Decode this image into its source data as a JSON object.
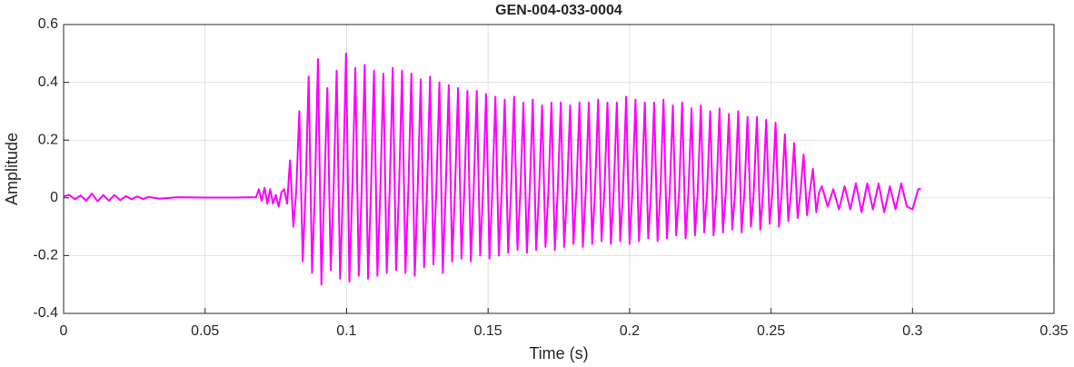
{
  "chart_data": {
    "type": "line",
    "title": "GEN-004-033-0004",
    "xlabel": "Time (s)",
    "ylabel": "Amplitude",
    "color": "#ff00ff",
    "grid": true,
    "xlim": [
      0,
      0.35
    ],
    "xticks": [
      0,
      0.05,
      0.1,
      0.15,
      0.2,
      0.25,
      0.3,
      0.35
    ],
    "ylim": [
      -0.4,
      0.6
    ],
    "yticks": [
      -0.4,
      -0.2,
      0,
      0.2,
      0.4,
      0.6
    ],
    "x": [
      0,
      0.002,
      0.004,
      0.006,
      0.008,
      0.01,
      0.012,
      0.014,
      0.016,
      0.018,
      0.02,
      0.022,
      0.024,
      0.026,
      0.028,
      0.03,
      0.034,
      0.04,
      0.05,
      0.06,
      0.068,
      0.069,
      0.07,
      0.071,
      0.072,
      0.073,
      0.074,
      0.075,
      0.076,
      0.077,
      0.078,
      0.079,
      0.08,
      0.0812,
      0.0822,
      0.0833,
      0.0845,
      0.0855,
      0.0866,
      0.0878,
      0.0888,
      0.0899,
      0.0911,
      0.0921,
      0.0932,
      0.0944,
      0.0954,
      0.0965,
      0.0977,
      0.0987,
      0.0998,
      0.101,
      0.102,
      0.1031,
      0.1043,
      0.1053,
      0.1064,
      0.1076,
      0.1086,
      0.1097,
      0.1109,
      0.1119,
      0.113,
      0.1142,
      0.1152,
      0.1163,
      0.1175,
      0.1185,
      0.1196,
      0.1208,
      0.1218,
      0.1229,
      0.1241,
      0.1251,
      0.1262,
      0.1274,
      0.1284,
      0.1295,
      0.1307,
      0.1317,
      0.1328,
      0.134,
      0.135,
      0.1361,
      0.1373,
      0.1383,
      0.1394,
      0.1406,
      0.1416,
      0.1427,
      0.1439,
      0.1449,
      0.146,
      0.1472,
      0.1482,
      0.1493,
      0.1505,
      0.1515,
      0.1526,
      0.1538,
      0.1548,
      0.1559,
      0.1571,
      0.1581,
      0.1592,
      0.1604,
      0.1614,
      0.1625,
      0.1637,
      0.1647,
      0.1658,
      0.167,
      0.168,
      0.1691,
      0.1703,
      0.1713,
      0.1724,
      0.1736,
      0.1746,
      0.1757,
      0.1769,
      0.1779,
      0.179,
      0.1802,
      0.1812,
      0.1823,
      0.1835,
      0.1845,
      0.1856,
      0.1868,
      0.1878,
      0.1889,
      0.1901,
      0.1911,
      0.1922,
      0.1934,
      0.1944,
      0.1955,
      0.1967,
      0.1977,
      0.1988,
      0.2,
      0.201,
      0.2021,
      0.2033,
      0.2043,
      0.2054,
      0.2066,
      0.2076,
      0.2087,
      0.2099,
      0.2109,
      0.212,
      0.2132,
      0.2142,
      0.2153,
      0.2165,
      0.2175,
      0.2186,
      0.2198,
      0.2208,
      0.2219,
      0.2231,
      0.2241,
      0.2252,
      0.2264,
      0.2274,
      0.2285,
      0.2297,
      0.2307,
      0.2318,
      0.233,
      0.234,
      0.2351,
      0.2363,
      0.2373,
      0.2384,
      0.2396,
      0.2406,
      0.2417,
      0.2429,
      0.2439,
      0.245,
      0.2462,
      0.2472,
      0.2483,
      0.2495,
      0.2505,
      0.2516,
      0.2528,
      0.2538,
      0.2549,
      0.2561,
      0.2571,
      0.2582,
      0.2594,
      0.2604,
      0.2615,
      0.2627,
      0.2637,
      0.2648,
      0.266,
      0.267,
      0.268,
      0.27,
      0.272,
      0.274,
      0.276,
      0.278,
      0.28,
      0.282,
      0.284,
      0.286,
      0.288,
      0.29,
      0.292,
      0.294,
      0.296,
      0.298,
      0.3,
      0.302,
      0.303
    ],
    "values": [
      0.005,
      0.01,
      -0.005,
      0.008,
      -0.01,
      0.015,
      -0.012,
      0.01,
      -0.01,
      0.01,
      -0.008,
      0.006,
      -0.005,
      0.005,
      -0.004,
      0.003,
      -0.003,
      0.002,
      0.001,
      0.001,
      0.002,
      0.03,
      -0.01,
      0.035,
      -0.02,
      0.03,
      -0.02,
      0.01,
      -0.03,
      0.02,
      0.03,
      -0.02,
      0.13,
      -0.1,
      0.02,
      0.3,
      -0.22,
      0.02,
      0.42,
      -0.26,
      0.02,
      0.48,
      -0.3,
      0.02,
      0.38,
      -0.25,
      0.02,
      0.44,
      -0.28,
      0.02,
      0.5,
      -0.29,
      0.02,
      0.45,
      -0.27,
      0.02,
      0.46,
      -0.28,
      0.02,
      0.44,
      -0.27,
      0.02,
      0.43,
      -0.26,
      0.02,
      0.45,
      -0.25,
      0.02,
      0.44,
      -0.26,
      0.02,
      0.43,
      -0.27,
      0.02,
      0.41,
      -0.24,
      0.02,
      0.42,
      -0.23,
      0.02,
      0.4,
      -0.26,
      0.02,
      0.39,
      -0.22,
      0.02,
      0.38,
      -0.21,
      0.02,
      0.37,
      -0.22,
      0.02,
      0.37,
      -0.2,
      0.02,
      0.36,
      -0.21,
      0.02,
      0.35,
      -0.2,
      0.02,
      0.34,
      -0.19,
      0.02,
      0.35,
      -0.18,
      0.02,
      0.33,
      -0.19,
      0.02,
      0.34,
      -0.18,
      0.02,
      0.32,
      -0.17,
      0.02,
      0.33,
      -0.18,
      0.02,
      0.33,
      -0.17,
      0.02,
      0.32,
      -0.16,
      0.02,
      0.33,
      -0.17,
      0.02,
      0.33,
      -0.16,
      0.02,
      0.34,
      -0.15,
      0.02,
      0.33,
      -0.16,
      0.02,
      0.33,
      -0.15,
      0.02,
      0.35,
      -0.16,
      0.02,
      0.34,
      -0.15,
      0.02,
      0.33,
      -0.14,
      0.02,
      0.33,
      -0.15,
      0.02,
      0.34,
      -0.14,
      0.02,
      0.32,
      -0.13,
      0.02,
      0.33,
      -0.14,
      0.02,
      0.31,
      -0.13,
      0.02,
      0.32,
      -0.12,
      0.02,
      0.3,
      -0.13,
      0.02,
      0.31,
      -0.12,
      0.02,
      0.29,
      -0.11,
      0.02,
      0.3,
      -0.12,
      0.02,
      0.28,
      -0.1,
      0.02,
      0.28,
      -0.11,
      0.02,
      0.27,
      -0.09,
      0.02,
      0.26,
      -0.1,
      0.02,
      0.22,
      -0.08,
      0.02,
      0.19,
      -0.07,
      0.02,
      0.15,
      -0.06,
      0.02,
      0.1,
      -0.05,
      0.02,
      0.04,
      -0.03,
      0.03,
      -0.04,
      0.04,
      -0.04,
      0.05,
      -0.05,
      0.05,
      -0.04,
      0.05,
      -0.05,
      0.04,
      -0.04,
      0.05,
      -0.03,
      -0.04,
      0.03,
      0.03
    ]
  }
}
